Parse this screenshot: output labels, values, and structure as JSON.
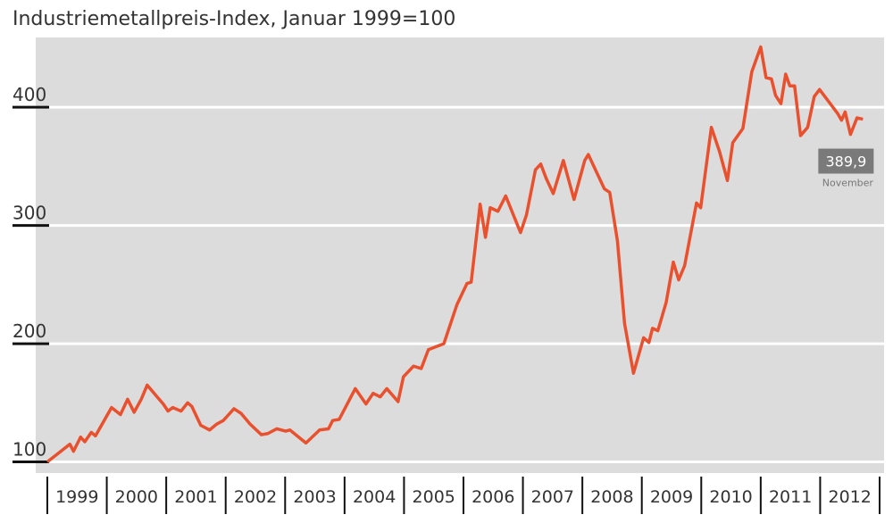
{
  "chart_data": {
    "type": "line",
    "title": "Industriemetallpreis-Index, Januar 1999=100",
    "x": [
      1999.0,
      1999.38,
      1999.44,
      1999.56,
      1999.63,
      1999.74,
      1999.81,
      2000.08,
      2000.23,
      2000.35,
      2000.46,
      2000.58,
      2000.68,
      2000.83,
      2000.95,
      2001.03,
      2001.11,
      2001.25,
      2001.36,
      2001.43,
      2001.58,
      2001.73,
      2001.85,
      2001.96,
      2002.14,
      2002.26,
      2002.41,
      2002.6,
      2002.71,
      2002.86,
      2003.01,
      2003.08,
      2003.35,
      2003.58,
      2003.73,
      2003.8,
      2003.91,
      2004.18,
      2004.36,
      2004.48,
      2004.6,
      2004.71,
      2004.9,
      2004.99,
      2005.16,
      2005.29,
      2005.41,
      2005.67,
      2005.89,
      2006.06,
      2006.13,
      2006.28,
      2006.37,
      2006.45,
      2006.58,
      2006.71,
      2006.96,
      2007.06,
      2007.21,
      2007.3,
      2007.39,
      2007.51,
      2007.68,
      2007.86,
      2008.04,
      2008.1,
      2008.37,
      2008.46,
      2008.59,
      2008.71,
      2008.86,
      2009.03,
      2009.12,
      2009.18,
      2009.27,
      2009.41,
      2009.53,
      2009.62,
      2009.72,
      2009.92,
      2009.99,
      2010.17,
      2010.31,
      2010.44,
      2010.53,
      2010.7,
      2010.85,
      2011.0,
      2011.09,
      2011.18,
      2011.25,
      2011.34,
      2011.42,
      2011.49,
      2011.57,
      2011.67,
      2011.79,
      2011.9,
      2011.99,
      2012.17,
      2012.29,
      2012.36,
      2012.42,
      2012.51,
      2012.62,
      2012.72
    ],
    "series": [
      {
        "name": "Industriemetallpreis-Index",
        "color": "#e8502e",
        "values": [
          100,
          115,
          109,
          121,
          117,
          125,
          122,
          146,
          140,
          153,
          142,
          153,
          165,
          156,
          149,
          143,
          146,
          143,
          150,
          147,
          131,
          127,
          132,
          135,
          145,
          141,
          132,
          123,
          124,
          128,
          126,
          127,
          116,
          127,
          128,
          135,
          136,
          162,
          149,
          158,
          155,
          162,
          151,
          172,
          181,
          179,
          195,
          200,
          233,
          251,
          252,
          318,
          290,
          315,
          312,
          325,
          294,
          309,
          347,
          352,
          340,
          327,
          355,
          322,
          355,
          360,
          331,
          328,
          287,
          217,
          175,
          205,
          201,
          213,
          211,
          235,
          269,
          254,
          266,
          319,
          315,
          383,
          362,
          338,
          370,
          382,
          430,
          451,
          425,
          424,
          410,
          403,
          428,
          418,
          418,
          376,
          383,
          409,
          415,
          403,
          395,
          389,
          396,
          377,
          391,
          389.9
        ]
      }
    ],
    "annotation": {
      "text": "389,9",
      "sub": "November"
    },
    "xlim": [
      1999,
      2013
    ],
    "xticks": [
      1999,
      2000,
      2001,
      2002,
      2003,
      2004,
      2005,
      2006,
      2007,
      2008,
      2009,
      2010,
      2011,
      2012,
      2013
    ],
    "x_labels": [
      1999,
      2000,
      2001,
      2002,
      2003,
      2004,
      2005,
      2006,
      2007,
      2008,
      2009,
      2010,
      2011,
      2012
    ],
    "ylim": [
      90.6,
      459
    ],
    "yticks": [
      100,
      200,
      300,
      400
    ],
    "grid": true,
    "background": "#dcdcdc"
  }
}
